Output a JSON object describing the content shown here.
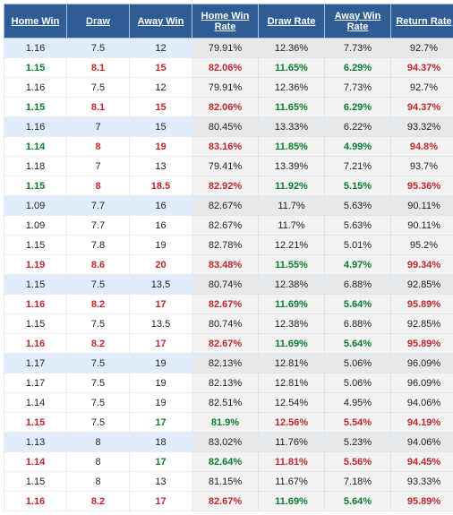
{
  "table": {
    "type": "table",
    "colors": {
      "header_bg": "#2e5c95",
      "header_text": "#ffffff",
      "row_blue_bg": "#e0ecfb",
      "row_white_bg": "#ffffff",
      "rate_bg_blue": "#e7e8ea",
      "rate_bg_white": "#f3f3f3",
      "border": "#dce6f0",
      "text_plain": "#222222",
      "text_green": "#0a7d2e",
      "text_red": "#c1272d"
    },
    "font_size": 11,
    "columns": [
      {
        "label": "Home Win",
        "width": 70
      },
      {
        "label": "Draw",
        "width": 70
      },
      {
        "label": "Away Win",
        "width": 70
      },
      {
        "label": "Home Win Rate",
        "width": 74
      },
      {
        "label": "Draw Rate",
        "width": 74
      },
      {
        "label": "Away Win Rate",
        "width": 74
      },
      {
        "label": "Return Rate",
        "width": 74
      }
    ],
    "rows": [
      {
        "bg": "blue",
        "cells": [
          {
            "v": "1.16",
            "c": "plain"
          },
          {
            "v": "7.5",
            "c": "plain"
          },
          {
            "v": "12",
            "c": "plain"
          },
          {
            "v": "79.91%",
            "c": "plain"
          },
          {
            "v": "12.36%",
            "c": "plain"
          },
          {
            "v": "7.73%",
            "c": "plain"
          },
          {
            "v": "92.7%",
            "c": "plain"
          }
        ]
      },
      {
        "bg": "white",
        "cells": [
          {
            "v": "1.15",
            "c": "green"
          },
          {
            "v": "8.1",
            "c": "red"
          },
          {
            "v": "15",
            "c": "red"
          },
          {
            "v": "82.06%",
            "c": "red"
          },
          {
            "v": "11.65%",
            "c": "green"
          },
          {
            "v": "6.29%",
            "c": "green"
          },
          {
            "v": "94.37%",
            "c": "red"
          }
        ]
      },
      {
        "bg": "white",
        "cells": [
          {
            "v": "1.16",
            "c": "plain"
          },
          {
            "v": "7.5",
            "c": "plain"
          },
          {
            "v": "12",
            "c": "plain"
          },
          {
            "v": "79.91%",
            "c": "plain"
          },
          {
            "v": "12.36%",
            "c": "plain"
          },
          {
            "v": "7.73%",
            "c": "plain"
          },
          {
            "v": "92.7%",
            "c": "plain"
          }
        ]
      },
      {
        "bg": "white",
        "cells": [
          {
            "v": "1.15",
            "c": "green"
          },
          {
            "v": "8.1",
            "c": "red"
          },
          {
            "v": "15",
            "c": "red"
          },
          {
            "v": "82.06%",
            "c": "red"
          },
          {
            "v": "11.65%",
            "c": "green"
          },
          {
            "v": "6.29%",
            "c": "green"
          },
          {
            "v": "94.37%",
            "c": "red"
          }
        ]
      },
      {
        "bg": "blue",
        "cells": [
          {
            "v": "1.16",
            "c": "plain"
          },
          {
            "v": "7",
            "c": "plain"
          },
          {
            "v": "15",
            "c": "plain"
          },
          {
            "v": "80.45%",
            "c": "plain"
          },
          {
            "v": "13.33%",
            "c": "plain"
          },
          {
            "v": "6.22%",
            "c": "plain"
          },
          {
            "v": "93.32%",
            "c": "plain"
          }
        ]
      },
      {
        "bg": "white",
        "cells": [
          {
            "v": "1.14",
            "c": "green"
          },
          {
            "v": "8",
            "c": "red"
          },
          {
            "v": "19",
            "c": "red"
          },
          {
            "v": "83.16%",
            "c": "red"
          },
          {
            "v": "11.85%",
            "c": "green"
          },
          {
            "v": "4.99%",
            "c": "green"
          },
          {
            "v": "94.8%",
            "c": "red"
          }
        ]
      },
      {
        "bg": "white",
        "cells": [
          {
            "v": "1.18",
            "c": "plain"
          },
          {
            "v": "7",
            "c": "plain"
          },
          {
            "v": "13",
            "c": "plain"
          },
          {
            "v": "79.41%",
            "c": "plain"
          },
          {
            "v": "13.39%",
            "c": "plain"
          },
          {
            "v": "7.21%",
            "c": "plain"
          },
          {
            "v": "93.7%",
            "c": "plain"
          }
        ]
      },
      {
        "bg": "white",
        "cells": [
          {
            "v": "1.15",
            "c": "green"
          },
          {
            "v": "8",
            "c": "red"
          },
          {
            "v": "18.5",
            "c": "red"
          },
          {
            "v": "82.92%",
            "c": "red"
          },
          {
            "v": "11.92%",
            "c": "green"
          },
          {
            "v": "5.15%",
            "c": "green"
          },
          {
            "v": "95.36%",
            "c": "red"
          }
        ]
      },
      {
        "bg": "blue",
        "cells": [
          {
            "v": "1.09",
            "c": "plain"
          },
          {
            "v": "7.7",
            "c": "plain"
          },
          {
            "v": "16",
            "c": "plain"
          },
          {
            "v": "82.67%",
            "c": "plain"
          },
          {
            "v": "11.7%",
            "c": "plain"
          },
          {
            "v": "5.63%",
            "c": "plain"
          },
          {
            "v": "90.11%",
            "c": "plain"
          }
        ]
      },
      {
        "bg": "white",
        "cells": [
          {
            "v": "1.09",
            "c": "plain"
          },
          {
            "v": "7.7",
            "c": "plain"
          },
          {
            "v": "16",
            "c": "plain"
          },
          {
            "v": "82.67%",
            "c": "plain"
          },
          {
            "v": "11.7%",
            "c": "plain"
          },
          {
            "v": "5.63%",
            "c": "plain"
          },
          {
            "v": "90.11%",
            "c": "plain"
          }
        ]
      },
      {
        "bg": "white",
        "cells": [
          {
            "v": "1.15",
            "c": "plain"
          },
          {
            "v": "7.8",
            "c": "plain"
          },
          {
            "v": "19",
            "c": "plain"
          },
          {
            "v": "82.78%",
            "c": "plain"
          },
          {
            "v": "12.21%",
            "c": "plain"
          },
          {
            "v": "5.01%",
            "c": "plain"
          },
          {
            "v": "95.2%",
            "c": "plain"
          }
        ]
      },
      {
        "bg": "white",
        "cells": [
          {
            "v": "1.19",
            "c": "red"
          },
          {
            "v": "8.6",
            "c": "red"
          },
          {
            "v": "20",
            "c": "red"
          },
          {
            "v": "83.48%",
            "c": "red"
          },
          {
            "v": "11.55%",
            "c": "green"
          },
          {
            "v": "4.97%",
            "c": "green"
          },
          {
            "v": "99.34%",
            "c": "red"
          }
        ]
      },
      {
        "bg": "blue",
        "cells": [
          {
            "v": "1.15",
            "c": "plain"
          },
          {
            "v": "7.5",
            "c": "plain"
          },
          {
            "v": "13.5",
            "c": "plain"
          },
          {
            "v": "80.74%",
            "c": "plain"
          },
          {
            "v": "12.38%",
            "c": "plain"
          },
          {
            "v": "6.88%",
            "c": "plain"
          },
          {
            "v": "92.85%",
            "c": "plain"
          }
        ]
      },
      {
        "bg": "white",
        "cells": [
          {
            "v": "1.16",
            "c": "red"
          },
          {
            "v": "8.2",
            "c": "red"
          },
          {
            "v": "17",
            "c": "red"
          },
          {
            "v": "82.67%",
            "c": "red"
          },
          {
            "v": "11.69%",
            "c": "green"
          },
          {
            "v": "5.64%",
            "c": "green"
          },
          {
            "v": "95.89%",
            "c": "red"
          }
        ]
      },
      {
        "bg": "white",
        "cells": [
          {
            "v": "1.15",
            "c": "plain"
          },
          {
            "v": "7.5",
            "c": "plain"
          },
          {
            "v": "13.5",
            "c": "plain"
          },
          {
            "v": "80.74%",
            "c": "plain"
          },
          {
            "v": "12.38%",
            "c": "plain"
          },
          {
            "v": "6.88%",
            "c": "plain"
          },
          {
            "v": "92.85%",
            "c": "plain"
          }
        ]
      },
      {
        "bg": "white",
        "cells": [
          {
            "v": "1.16",
            "c": "red"
          },
          {
            "v": "8.2",
            "c": "red"
          },
          {
            "v": "17",
            "c": "red"
          },
          {
            "v": "82.67%",
            "c": "red"
          },
          {
            "v": "11.69%",
            "c": "green"
          },
          {
            "v": "5.64%",
            "c": "green"
          },
          {
            "v": "95.89%",
            "c": "red"
          }
        ]
      },
      {
        "bg": "blue",
        "cells": [
          {
            "v": "1.17",
            "c": "plain"
          },
          {
            "v": "7.5",
            "c": "plain"
          },
          {
            "v": "19",
            "c": "plain"
          },
          {
            "v": "82.13%",
            "c": "plain"
          },
          {
            "v": "12.81%",
            "c": "plain"
          },
          {
            "v": "5.06%",
            "c": "plain"
          },
          {
            "v": "96.09%",
            "c": "plain"
          }
        ]
      },
      {
        "bg": "white",
        "cells": [
          {
            "v": "1.17",
            "c": "plain"
          },
          {
            "v": "7.5",
            "c": "plain"
          },
          {
            "v": "19",
            "c": "plain"
          },
          {
            "v": "82.13%",
            "c": "plain"
          },
          {
            "v": "12.81%",
            "c": "plain"
          },
          {
            "v": "5.06%",
            "c": "plain"
          },
          {
            "v": "96.09%",
            "c": "plain"
          }
        ]
      },
      {
        "bg": "white",
        "cells": [
          {
            "v": "1.14",
            "c": "plain"
          },
          {
            "v": "7.5",
            "c": "plain"
          },
          {
            "v": "19",
            "c": "plain"
          },
          {
            "v": "82.51%",
            "c": "plain"
          },
          {
            "v": "12.54%",
            "c": "plain"
          },
          {
            "v": "4.95%",
            "c": "plain"
          },
          {
            "v": "94.06%",
            "c": "plain"
          }
        ]
      },
      {
        "bg": "white",
        "cells": [
          {
            "v": "1.15",
            "c": "red"
          },
          {
            "v": "7.5",
            "c": "plain"
          },
          {
            "v": "17",
            "c": "green"
          },
          {
            "v": "81.9%",
            "c": "green"
          },
          {
            "v": "12.56%",
            "c": "red"
          },
          {
            "v": "5.54%",
            "c": "red"
          },
          {
            "v": "94.19%",
            "c": "red"
          }
        ]
      },
      {
        "bg": "blue",
        "cells": [
          {
            "v": "1.13",
            "c": "plain"
          },
          {
            "v": "8",
            "c": "plain"
          },
          {
            "v": "18",
            "c": "plain"
          },
          {
            "v": "83.02%",
            "c": "plain"
          },
          {
            "v": "11.76%",
            "c": "plain"
          },
          {
            "v": "5.23%",
            "c": "plain"
          },
          {
            "v": "94.06%",
            "c": "plain"
          }
        ]
      },
      {
        "bg": "white",
        "cells": [
          {
            "v": "1.14",
            "c": "red"
          },
          {
            "v": "8",
            "c": "plain"
          },
          {
            "v": "17",
            "c": "green"
          },
          {
            "v": "82.64%",
            "c": "green"
          },
          {
            "v": "11.81%",
            "c": "red"
          },
          {
            "v": "5.56%",
            "c": "red"
          },
          {
            "v": "94.45%",
            "c": "red"
          }
        ]
      },
      {
        "bg": "white",
        "cells": [
          {
            "v": "1.15",
            "c": "plain"
          },
          {
            "v": "8",
            "c": "plain"
          },
          {
            "v": "13",
            "c": "plain"
          },
          {
            "v": "81.15%",
            "c": "plain"
          },
          {
            "v": "11.67%",
            "c": "plain"
          },
          {
            "v": "7.18%",
            "c": "plain"
          },
          {
            "v": "93.33%",
            "c": "plain"
          }
        ]
      },
      {
        "bg": "white",
        "cells": [
          {
            "v": "1.16",
            "c": "red"
          },
          {
            "v": "8.2",
            "c": "red"
          },
          {
            "v": "17",
            "c": "red"
          },
          {
            "v": "82.67%",
            "c": "red"
          },
          {
            "v": "11.69%",
            "c": "green"
          },
          {
            "v": "5.64%",
            "c": "green"
          },
          {
            "v": "95.89%",
            "c": "red"
          }
        ]
      }
    ]
  }
}
